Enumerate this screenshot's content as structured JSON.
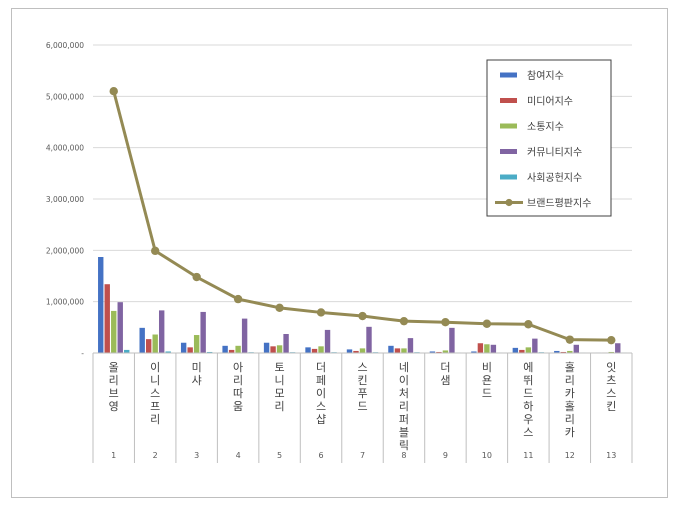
{
  "chart_data": {
    "type": "bar",
    "overlay": "line",
    "title": "",
    "xlabel": "",
    "ylabel": "",
    "ylim": [
      0,
      6000000
    ],
    "yticks": [
      "-",
      "1,000,000",
      "2,000,000",
      "3,000,000",
      "4,000,000",
      "5,000,000",
      "6,000,000"
    ],
    "grid": true,
    "legend_position": "top-right",
    "categories": [
      "올리브영",
      "이니스프리",
      "미샤",
      "아리따움",
      "토니모리",
      "더페이스샵",
      "스킨푸드",
      "네이처리퍼블릭",
      "더샘",
      "비욘드",
      "에뛰드하우스",
      "홀리카홀리카",
      "잇츠스킨"
    ],
    "ranks": [
      "1",
      "2",
      "3",
      "4",
      "5",
      "6",
      "7",
      "8",
      "9",
      "10",
      "11",
      "12",
      "13"
    ],
    "series": [
      {
        "name": "참여지수",
        "kind": "bar",
        "color": "#4472c4",
        "values": [
          1870000,
          490000,
          200000,
          140000,
          200000,
          110000,
          70000,
          140000,
          30000,
          30000,
          100000,
          40000,
          10000
        ]
      },
      {
        "name": "미디어지수",
        "kind": "bar",
        "color": "#c0504d",
        "values": [
          1340000,
          270000,
          110000,
          60000,
          130000,
          80000,
          40000,
          90000,
          20000,
          190000,
          60000,
          20000,
          10000
        ]
      },
      {
        "name": "소통지수",
        "kind": "bar",
        "color": "#9bbb59",
        "values": [
          820000,
          360000,
          350000,
          140000,
          150000,
          130000,
          90000,
          90000,
          50000,
          170000,
          110000,
          40000,
          20000
        ]
      },
      {
        "name": "커뮤니티지수",
        "kind": "bar",
        "color": "#8064a2",
        "values": [
          990000,
          830000,
          800000,
          670000,
          370000,
          450000,
          510000,
          290000,
          490000,
          160000,
          280000,
          160000,
          190000
        ]
      },
      {
        "name": "사회공헌지수",
        "kind": "bar",
        "color": "#4bacc6",
        "values": [
          60000,
          30000,
          20000,
          15000,
          15000,
          15000,
          15000,
          15000,
          10000,
          10000,
          15000,
          10000,
          10000
        ]
      },
      {
        "name": "브랜드평판지수",
        "kind": "line",
        "color": "#948a54",
        "values": [
          5100000,
          1990000,
          1480000,
          1050000,
          880000,
          790000,
          720000,
          620000,
          600000,
          570000,
          560000,
          260000,
          250000
        ]
      }
    ]
  }
}
